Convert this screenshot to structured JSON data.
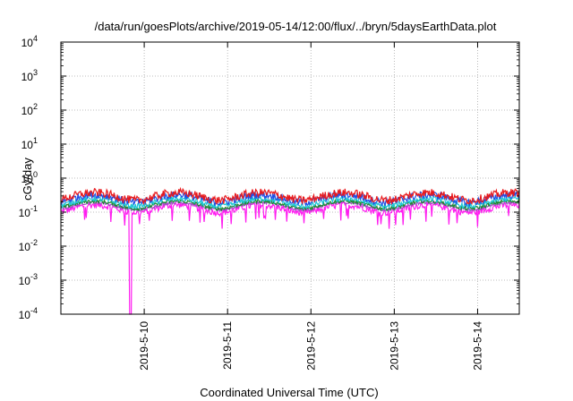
{
  "chart_data": {
    "type": "line",
    "title": "/data/run/goesPlots/archive/2019-05-14/12:00/flux/../bryn/5daysEarthData.plot",
    "xlabel": "Coordinated Universal Time (UTC)",
    "ylabel": "cGy/day",
    "yscale": "log",
    "ylim": [
      0.0001,
      10000
    ],
    "yticks": [
      {
        "base": "10",
        "exp": "4"
      },
      {
        "base": "10",
        "exp": "3"
      },
      {
        "base": "10",
        "exp": "2"
      },
      {
        "base": "10",
        "exp": "1"
      },
      {
        "base": "10",
        "exp": "0"
      },
      {
        "base": "10",
        "exp": "-1"
      },
      {
        "base": "10",
        "exp": "-2"
      },
      {
        "base": "10",
        "exp": "-3"
      },
      {
        "base": "10",
        "exp": "-4"
      }
    ],
    "xlim": [
      "2019-05-09 00:00",
      "2019-05-14 12:00"
    ],
    "xticks": [
      "2019-5-10",
      "2019-5-11",
      "2019-5-12",
      "2019-5-13",
      "2019-5-14"
    ],
    "grid": true,
    "series": [
      {
        "color": "#e8191c",
        "level": 0.3,
        "amplitude": 0.55
      },
      {
        "color": "#1f4ee6",
        "level": 0.26,
        "amplitude": 0.5
      },
      {
        "color": "#1ec6d6",
        "level": 0.2,
        "amplitude": 0.35
      },
      {
        "color": "#1a8a2e",
        "level": 0.17,
        "amplitude": 0.25
      },
      {
        "color": "#a24fc4",
        "level": 0.155,
        "amplitude": 0.2
      },
      {
        "color": "#ff1cf0",
        "level": 0.13,
        "amplitude": 0.45
      }
    ],
    "dropout": {
      "time": "2019-05-09 20:00",
      "value": 0.0001
    }
  }
}
